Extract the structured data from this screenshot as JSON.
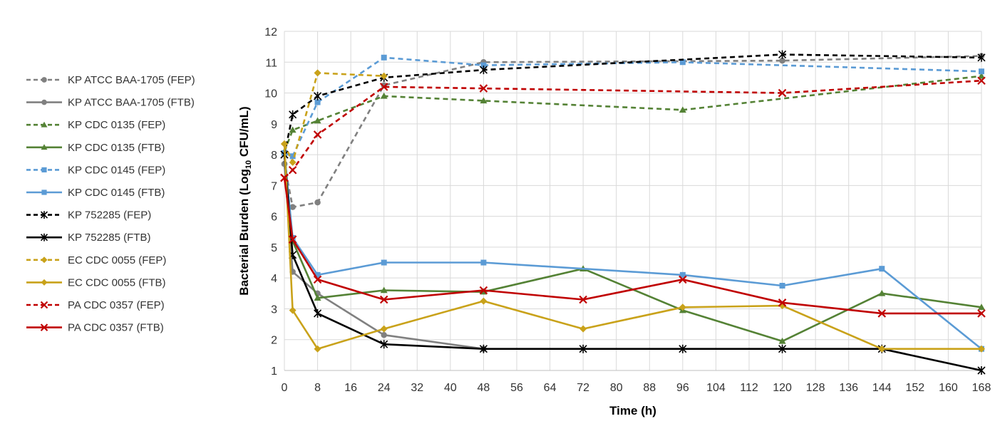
{
  "chart_data": {
    "type": "line",
    "xlabel": "Time (h)",
    "ylabel_main": "Bacterial Burden (Log",
    "ylabel_sub": "10",
    "ylabel_tail": " CFU/mL)",
    "xlim": [
      0,
      168
    ],
    "ylim": [
      1,
      12
    ],
    "x_ticks": [
      0,
      8,
      16,
      24,
      32,
      40,
      48,
      56,
      64,
      72,
      80,
      88,
      96,
      104,
      112,
      120,
      128,
      136,
      144,
      152,
      160,
      168
    ],
    "y_ticks": [
      1,
      2,
      3,
      4,
      5,
      6,
      7,
      8,
      9,
      10,
      11,
      12
    ],
    "grid": true,
    "legend_position": "left",
    "series": [
      {
        "name": "KP ATCC BAA-1705 (FEP)",
        "color": "#808080",
        "dash": true,
        "marker": "circle",
        "x": [
          0,
          2,
          8,
          24,
          48,
          120,
          168
        ],
        "y": [
          7.7,
          6.3,
          6.45,
          10.25,
          11.0,
          11.05,
          11.2
        ]
      },
      {
        "name": "KP ATCC BAA-1705 (FTB)",
        "color": "#808080",
        "dash": false,
        "marker": "circle",
        "x": [
          0,
          2,
          8,
          24,
          48
        ],
        "y": [
          7.7,
          4.2,
          3.5,
          2.15,
          1.7
        ]
      },
      {
        "name": "KP CDC 0135 (FEP)",
        "color": "#548235",
        "dash": true,
        "marker": "triangle",
        "x": [
          0,
          2,
          8,
          24,
          48,
          96,
          168
        ],
        "y": [
          8.1,
          8.8,
          9.1,
          9.9,
          9.75,
          9.45,
          10.55
        ]
      },
      {
        "name": "KP CDC 0135 (FTB)",
        "color": "#548235",
        "dash": false,
        "marker": "triangle",
        "x": [
          0,
          2,
          8,
          24,
          48,
          72,
          96,
          120,
          144,
          168
        ],
        "y": [
          8.1,
          5.2,
          3.35,
          3.6,
          3.55,
          4.3,
          2.95,
          1.95,
          3.5,
          3.05
        ]
      },
      {
        "name": "KP CDC 0145 (FEP)",
        "color": "#5B9BD5",
        "dash": true,
        "marker": "square",
        "x": [
          0,
          2,
          8,
          24,
          48,
          96,
          168
        ],
        "y": [
          8.05,
          7.95,
          9.7,
          11.15,
          10.9,
          11.0,
          10.7
        ]
      },
      {
        "name": "KP CDC 0145 (FTB)",
        "color": "#5B9BD5",
        "dash": false,
        "marker": "square",
        "x": [
          0,
          2,
          8,
          24,
          48,
          96,
          120,
          144,
          168
        ],
        "y": [
          8.05,
          5.3,
          4.1,
          4.5,
          4.5,
          4.1,
          3.75,
          4.3,
          1.7
        ]
      },
      {
        "name": "KP 752285 (FEP)",
        "color": "#000000",
        "dash": true,
        "marker": "star",
        "x": [
          0,
          2,
          8,
          24,
          48,
          120,
          168
        ],
        "y": [
          8.0,
          9.3,
          9.9,
          10.5,
          10.75,
          11.25,
          11.15
        ]
      },
      {
        "name": "KP 752285 (FTB)",
        "color": "#000000",
        "dash": false,
        "marker": "star",
        "x": [
          0,
          2,
          8,
          24,
          48,
          72,
          96,
          120,
          144,
          168
        ],
        "y": [
          8.0,
          4.75,
          2.85,
          1.85,
          1.7,
          1.7,
          1.7,
          1.7,
          1.7,
          1.0
        ]
      },
      {
        "name": "EC CDC 0055 (FEP)",
        "color": "#C9A21A",
        "dash": true,
        "marker": "diamond",
        "x": [
          0,
          2,
          8,
          24
        ],
        "y": [
          8.35,
          7.75,
          10.65,
          10.55
        ]
      },
      {
        "name": "EC CDC 0055 (FTB)",
        "color": "#C9A21A",
        "dash": false,
        "marker": "diamond",
        "x": [
          0,
          2,
          8,
          24,
          48,
          72,
          96,
          120,
          144,
          168
        ],
        "y": [
          8.35,
          2.95,
          1.7,
          2.35,
          3.25,
          2.35,
          3.05,
          3.1,
          1.7,
          1.7
        ]
      },
      {
        "name": "PA CDC 0357 (FEP)",
        "color": "#C00000",
        "dash": true,
        "marker": "x",
        "x": [
          0,
          2,
          8,
          24,
          48,
          120,
          168
        ],
        "y": [
          7.25,
          7.5,
          8.65,
          10.2,
          10.15,
          10.0,
          10.4
        ]
      },
      {
        "name": "PA CDC 0357 (FTB)",
        "color": "#C00000",
        "dash": false,
        "marker": "x",
        "x": [
          0,
          2,
          8,
          24,
          48,
          72,
          96,
          120,
          144,
          168
        ],
        "y": [
          7.25,
          5.25,
          3.95,
          3.3,
          3.6,
          3.3,
          3.95,
          3.2,
          2.85,
          2.85
        ]
      }
    ]
  }
}
